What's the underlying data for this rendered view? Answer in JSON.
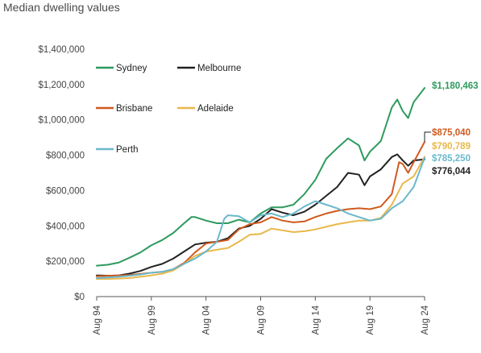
{
  "chart_data": {
    "type": "line",
    "title": "Median dwelling values",
    "xlabel": "",
    "ylabel": "",
    "x_start": "Aug 94",
    "x_end": "Aug 24",
    "x_ticks": [
      "Aug 94",
      "Aug 99",
      "Aug 04",
      "Aug 09",
      "Aug 14",
      "Aug 19",
      "Aug 24"
    ],
    "ylim": [
      0,
      1400000
    ],
    "y_ticks": [
      0,
      200000,
      400000,
      600000,
      800000,
      1000000,
      1200000,
      1400000
    ],
    "y_tick_labels": [
      "$0",
      "$200,000",
      "$400,000",
      "$600,000",
      "$800,000",
      "$1,000,000",
      "$1,200,000",
      "$1,400,000"
    ],
    "grid": false,
    "legend_position": "top-left",
    "series": [
      {
        "name": "Sydney",
        "color": "#2e9a5e",
        "end_label": "$1,180,463",
        "points": [
          [
            "1994-08",
            175000
          ],
          [
            "1995-08",
            180000
          ],
          [
            "1996-08",
            192000
          ],
          [
            "1997-08",
            220000
          ],
          [
            "1998-08",
            250000
          ],
          [
            "1999-08",
            290000
          ],
          [
            "2000-08",
            320000
          ],
          [
            "2001-08",
            360000
          ],
          [
            "2002-08",
            415000
          ],
          [
            "2003-04",
            450000
          ],
          [
            "2003-08",
            450000
          ],
          [
            "2004-08",
            430000
          ],
          [
            "2005-08",
            415000
          ],
          [
            "2006-08",
            415000
          ],
          [
            "2007-08",
            435000
          ],
          [
            "2008-08",
            420000
          ],
          [
            "2009-08",
            470000
          ],
          [
            "2010-08",
            505000
          ],
          [
            "2011-08",
            505000
          ],
          [
            "2012-08",
            520000
          ],
          [
            "2013-08",
            580000
          ],
          [
            "2014-08",
            660000
          ],
          [
            "2015-08",
            780000
          ],
          [
            "2016-08",
            840000
          ],
          [
            "2017-08",
            895000
          ],
          [
            "2018-08",
            855000
          ],
          [
            "2019-02",
            770000
          ],
          [
            "2019-08",
            820000
          ],
          [
            "2020-08",
            880000
          ],
          [
            "2021-08",
            1070000
          ],
          [
            "2022-02",
            1115000
          ],
          [
            "2022-08",
            1050000
          ],
          [
            "2023-02",
            1010000
          ],
          [
            "2023-08",
            1100000
          ],
          [
            "2024-08",
            1180463
          ]
        ]
      },
      {
        "name": "Melbourne",
        "color": "#222222",
        "end_label": "$776,044",
        "points": [
          [
            "1994-08",
            120000
          ],
          [
            "1995-08",
            118000
          ],
          [
            "1996-08",
            120000
          ],
          [
            "1997-08",
            130000
          ],
          [
            "1998-08",
            145000
          ],
          [
            "1999-08",
            168000
          ],
          [
            "2000-08",
            185000
          ],
          [
            "2001-08",
            215000
          ],
          [
            "2002-08",
            255000
          ],
          [
            "2003-08",
            295000
          ],
          [
            "2004-08",
            305000
          ],
          [
            "2005-08",
            310000
          ],
          [
            "2006-08",
            330000
          ],
          [
            "2007-08",
            385000
          ],
          [
            "2008-08",
            400000
          ],
          [
            "2009-08",
            440000
          ],
          [
            "2010-08",
            495000
          ],
          [
            "2011-08",
            475000
          ],
          [
            "2012-08",
            460000
          ],
          [
            "2013-08",
            480000
          ],
          [
            "2014-08",
            520000
          ],
          [
            "2015-08",
            570000
          ],
          [
            "2016-08",
            620000
          ],
          [
            "2017-08",
            700000
          ],
          [
            "2018-08",
            690000
          ],
          [
            "2019-02",
            630000
          ],
          [
            "2019-08",
            680000
          ],
          [
            "2020-08",
            720000
          ],
          [
            "2021-08",
            790000
          ],
          [
            "2022-02",
            805000
          ],
          [
            "2022-08",
            770000
          ],
          [
            "2023-02",
            740000
          ],
          [
            "2023-08",
            770000
          ],
          [
            "2024-08",
            776044
          ]
        ]
      },
      {
        "name": "Brisbane",
        "color": "#d05a1e",
        "end_label": "$875,040",
        "points": [
          [
            "1994-08",
            115000
          ],
          [
            "1995-08",
            118000
          ],
          [
            "1996-08",
            120000
          ],
          [
            "1997-08",
            122000
          ],
          [
            "1998-08",
            128000
          ],
          [
            "1999-08",
            135000
          ],
          [
            "2000-08",
            140000
          ],
          [
            "2001-08",
            155000
          ],
          [
            "2002-08",
            190000
          ],
          [
            "2003-08",
            250000
          ],
          [
            "2004-08",
            300000
          ],
          [
            "2005-08",
            310000
          ],
          [
            "2006-08",
            320000
          ],
          [
            "2007-08",
            380000
          ],
          [
            "2008-08",
            410000
          ],
          [
            "2009-08",
            420000
          ],
          [
            "2010-08",
            450000
          ],
          [
            "2011-08",
            430000
          ],
          [
            "2012-08",
            420000
          ],
          [
            "2013-08",
            425000
          ],
          [
            "2014-08",
            450000
          ],
          [
            "2015-08",
            470000
          ],
          [
            "2016-08",
            485000
          ],
          [
            "2017-08",
            495000
          ],
          [
            "2018-08",
            500000
          ],
          [
            "2019-08",
            495000
          ],
          [
            "2020-08",
            510000
          ],
          [
            "2021-08",
            580000
          ],
          [
            "2022-04",
            760000
          ],
          [
            "2022-08",
            750000
          ],
          [
            "2023-02",
            700000
          ],
          [
            "2023-08",
            760000
          ],
          [
            "2024-08",
            875040
          ]
        ]
      },
      {
        "name": "Adelaide",
        "color": "#e8b84a",
        "end_label": "$790,789",
        "points": [
          [
            "1994-08",
            100000
          ],
          [
            "1995-08",
            100000
          ],
          [
            "1996-08",
            102000
          ],
          [
            "1997-08",
            105000
          ],
          [
            "1998-08",
            112000
          ],
          [
            "1999-08",
            120000
          ],
          [
            "2000-08",
            130000
          ],
          [
            "2001-08",
            148000
          ],
          [
            "2002-08",
            185000
          ],
          [
            "2003-08",
            230000
          ],
          [
            "2004-08",
            255000
          ],
          [
            "2005-08",
            265000
          ],
          [
            "2006-08",
            275000
          ],
          [
            "2007-08",
            310000
          ],
          [
            "2008-08",
            350000
          ],
          [
            "2009-08",
            355000
          ],
          [
            "2010-08",
            385000
          ],
          [
            "2011-08",
            375000
          ],
          [
            "2012-08",
            365000
          ],
          [
            "2013-08",
            370000
          ],
          [
            "2014-08",
            380000
          ],
          [
            "2015-08",
            395000
          ],
          [
            "2016-08",
            410000
          ],
          [
            "2017-08",
            420000
          ],
          [
            "2018-08",
            430000
          ],
          [
            "2019-08",
            430000
          ],
          [
            "2020-08",
            445000
          ],
          [
            "2021-08",
            520000
          ],
          [
            "2022-08",
            640000
          ],
          [
            "2023-08",
            680000
          ],
          [
            "2024-08",
            790789
          ]
        ]
      },
      {
        "name": "Perth",
        "color": "#6ab8cc",
        "end_label": "$785,250",
        "points": [
          [
            "1994-08",
            105000
          ],
          [
            "1995-08",
            108000
          ],
          [
            "1996-08",
            112000
          ],
          [
            "1997-08",
            118000
          ],
          [
            "1998-08",
            125000
          ],
          [
            "1999-08",
            135000
          ],
          [
            "2000-08",
            140000
          ],
          [
            "2001-08",
            155000
          ],
          [
            "2002-08",
            185000
          ],
          [
            "2003-08",
            215000
          ],
          [
            "2004-08",
            255000
          ],
          [
            "2005-08",
            310000
          ],
          [
            "2006-04",
            440000
          ],
          [
            "2006-08",
            460000
          ],
          [
            "2007-08",
            455000
          ],
          [
            "2008-08",
            420000
          ],
          [
            "2009-08",
            460000
          ],
          [
            "2010-08",
            470000
          ],
          [
            "2011-08",
            450000
          ],
          [
            "2012-08",
            470000
          ],
          [
            "2013-08",
            510000
          ],
          [
            "2014-08",
            540000
          ],
          [
            "2015-08",
            520000
          ],
          [
            "2016-08",
            500000
          ],
          [
            "2017-08",
            470000
          ],
          [
            "2018-08",
            450000
          ],
          [
            "2019-08",
            430000
          ],
          [
            "2020-08",
            440000
          ],
          [
            "2021-08",
            500000
          ],
          [
            "2022-08",
            540000
          ],
          [
            "2023-08",
            620000
          ],
          [
            "2024-08",
            785250
          ]
        ]
      }
    ]
  }
}
